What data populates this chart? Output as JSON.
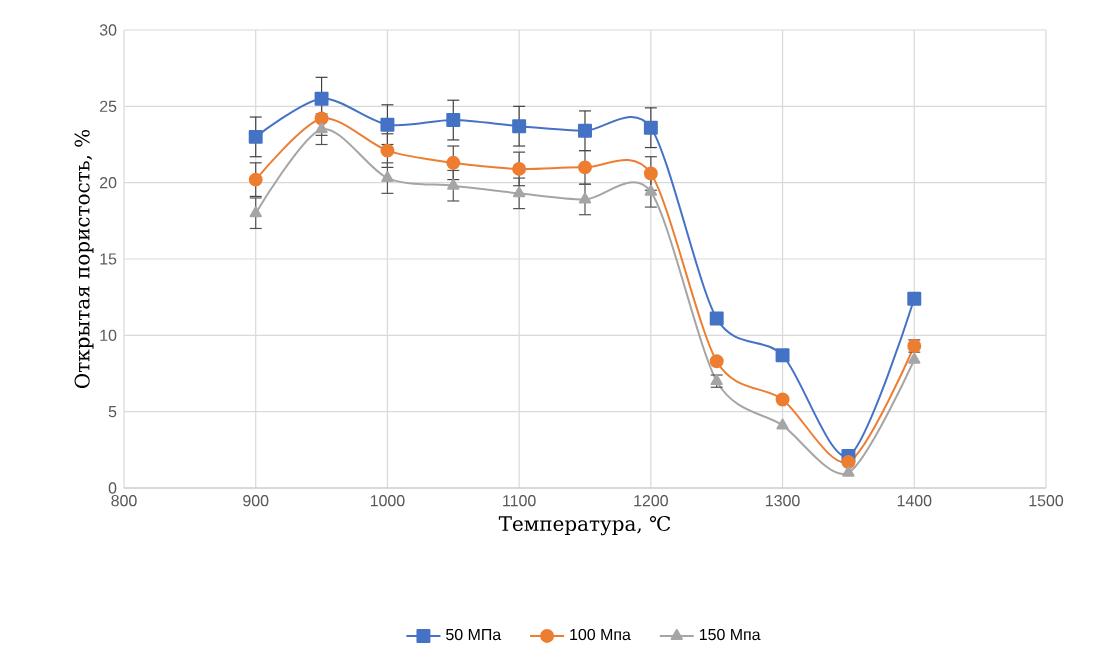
{
  "chart_data": {
    "type": "line",
    "xlabel": "Температура, ℃",
    "ylabel": "Открытая пористость, %",
    "x": [
      900,
      950,
      1000,
      1050,
      1100,
      1150,
      1200,
      1250,
      1300,
      1350,
      1400
    ],
    "series": [
      {
        "name": "50 МПа",
        "color": "#4472c4",
        "marker": "square",
        "values": [
          23.0,
          25.5,
          23.8,
          24.1,
          23.7,
          23.4,
          23.6,
          11.1,
          8.7,
          2.1,
          12.4
        ],
        "errors": [
          1.3,
          1.4,
          1.3,
          1.3,
          1.3,
          1.3,
          1.3,
          null,
          null,
          null,
          null
        ]
      },
      {
        "name": "100 Мпа",
        "color": "#ed7d31",
        "marker": "circle",
        "values": [
          20.2,
          24.2,
          22.1,
          21.3,
          20.9,
          21.0,
          20.6,
          8.3,
          5.8,
          1.7,
          9.3
        ],
        "errors": [
          1.1,
          1.1,
          1.1,
          1.1,
          1.1,
          1.1,
          1.1,
          null,
          null,
          null,
          0.4
        ]
      },
      {
        "name": "150 Мпа",
        "color": "#a5a5a5",
        "marker": "triangle",
        "values": [
          18.0,
          23.5,
          20.3,
          19.8,
          19.3,
          18.9,
          19.4,
          7.0,
          4.1,
          1.0,
          8.4
        ],
        "errors": [
          1.0,
          1.0,
          1.0,
          1.0,
          1.0,
          1.0,
          1.0,
          0.4,
          null,
          null,
          null
        ]
      }
    ],
    "xlim": [
      800,
      1500
    ],
    "xticks": [
      800,
      900,
      1000,
      1100,
      1200,
      1300,
      1400,
      1500
    ],
    "ylim": [
      0,
      30
    ],
    "yticks": [
      0,
      5,
      10,
      15,
      20,
      25,
      30
    ],
    "grid": true,
    "legend": "bottom",
    "line_style": "solid"
  }
}
